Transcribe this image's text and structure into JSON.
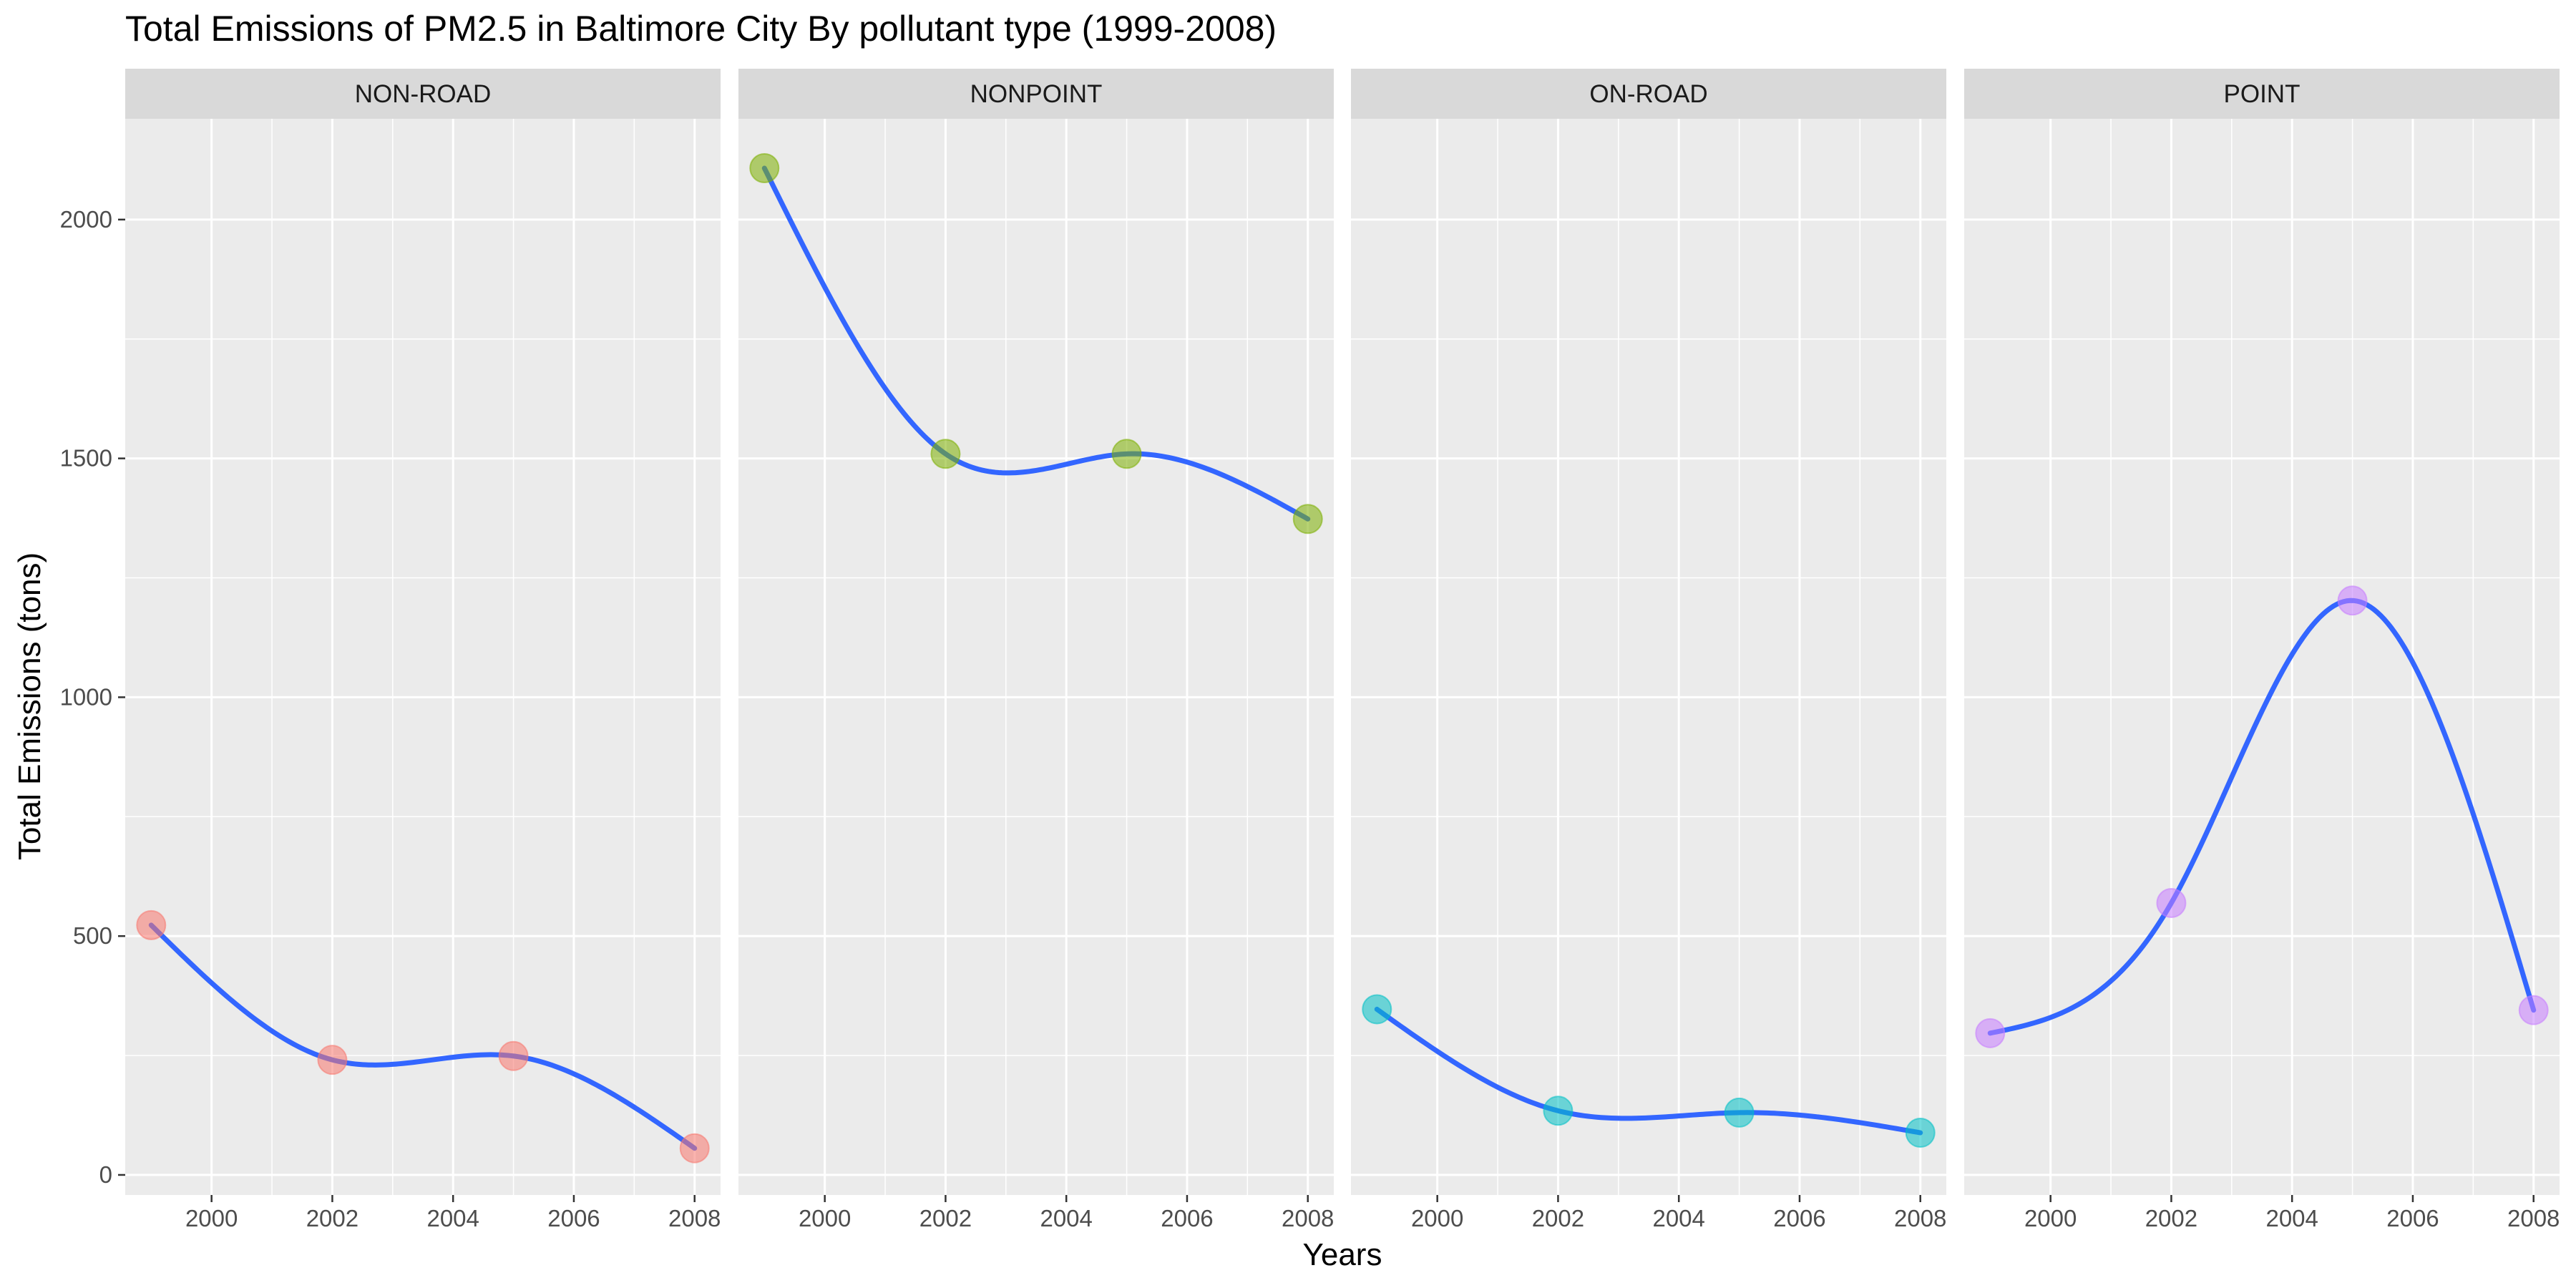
{
  "chart_data": {
    "type": "scatter",
    "title": "Total Emissions of PM2.5 in Baltimore City By pollutant type (1999-2008)",
    "xlabel": "Years",
    "ylabel": "Total Emissions (tons)",
    "xlim": [
      1998.57,
      2008.43
    ],
    "ylim": [
      -42,
      2211
    ],
    "x_ticks": [
      2000,
      2002,
      2004,
      2006,
      2008
    ],
    "y_ticks": [
      0,
      500,
      1000,
      1500,
      2000
    ],
    "grid": true,
    "smooth_line_color": "#3366FF",
    "facets": [
      {
        "name": "NON-ROAD",
        "color": "#F8766D",
        "x": [
          1999,
          2002,
          2005,
          2008
        ],
        "y": [
          522.94,
          240.85,
          248.93,
          55.82
        ]
      },
      {
        "name": "NONPOINT",
        "color": "#7CAE00",
        "x": [
          1999,
          2002,
          2005,
          2008
        ],
        "y": [
          2107.63,
          1509.5,
          1509.5,
          1373.21
        ]
      },
      {
        "name": "ON-ROAD",
        "color": "#00BFC4",
        "x": [
          1999,
          2002,
          2005,
          2008
        ],
        "y": [
          346.82,
          134.31,
          130.43,
          88.28
        ]
      },
      {
        "name": "POINT",
        "color": "#C77CFF",
        "x": [
          1999,
          2002,
          2005,
          2008
        ],
        "y": [
          296.8,
          569.26,
          1202.49,
          344.98
        ]
      }
    ]
  }
}
